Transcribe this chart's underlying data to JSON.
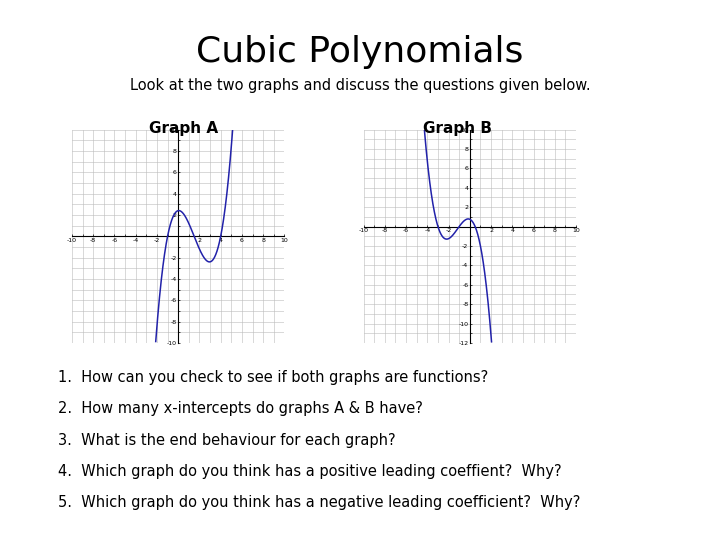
{
  "title": "Cubic Polynomials",
  "subtitle": "Look at the two graphs and discuss the questions given below.",
  "graph_a_label": "Graph A",
  "graph_b_label": "Graph B",
  "questions": [
    "1.  How can you check to see if both graphs are functions?",
    "2.  How many x-intercepts do graphs A & B have?",
    "3.  What is the end behaviour for each graph?",
    "4.  Which graph do you think has a positive leading coeffient?  Why?",
    "5.  Which graph do you think has a negative leading coefficient?  Why?"
  ],
  "background_color": "#ffffff",
  "curve_color": "#2222aa",
  "grid_color": "#bbbbbb",
  "axis_color": "#000000",
  "title_fontsize": 26,
  "subtitle_fontsize": 10.5,
  "graph_label_fontsize": 11,
  "question_fontsize": 10.5,
  "graph_a_xlim": [
    -10,
    10
  ],
  "graph_a_ylim": [
    -10,
    10
  ],
  "graph_b_xlim": [
    -10,
    10
  ],
  "graph_b_ylim": [
    -12,
    10
  ],
  "graph_a_roots": [
    -1.0,
    1.5,
    4.0
  ],
  "graph_a_scale": 0.4,
  "graph_b_roots": [
    -3.0,
    -1.0,
    0.5
  ],
  "graph_b_scale": 0.5
}
